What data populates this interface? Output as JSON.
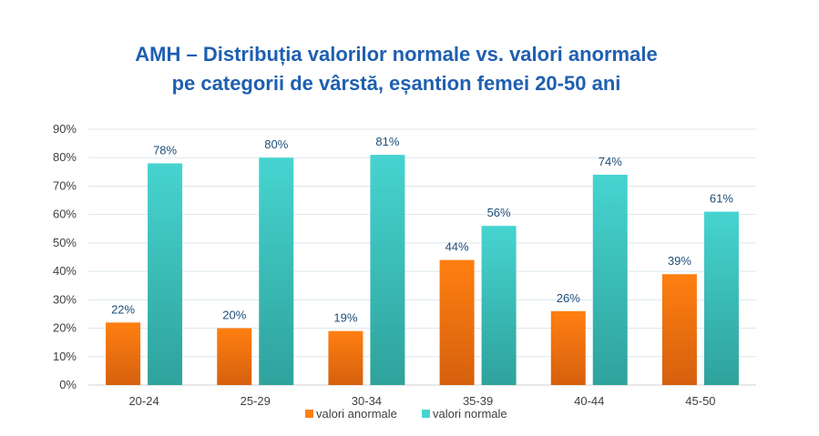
{
  "chart_data": {
    "type": "bar",
    "title_line1": "AMH – Distribuția valorilor normale vs. valori anormale",
    "title_line2": "pe categorii de vârstă, eșantion femei 20-50 ani",
    "categories": [
      "20-24",
      "25-29",
      "30-34",
      "35-39",
      "40-44",
      "45-50"
    ],
    "series": [
      {
        "name": "valori anormale",
        "values": [
          22,
          20,
          19,
          44,
          26,
          39
        ],
        "labels": [
          "22%",
          "20%",
          "19%",
          "44%",
          "26%",
          "39%"
        ],
        "color_top": "#ff7f10",
        "color_bottom": "#d6600e"
      },
      {
        "name": "valori normale",
        "values": [
          78,
          80,
          81,
          56,
          74,
          61
        ],
        "labels": [
          "78%",
          "80%",
          "81%",
          "56%",
          "74%",
          "61%"
        ],
        "color_top": "#46d4d0",
        "color_bottom": "#2fa29c"
      }
    ],
    "y_ticks": [
      "0%",
      "10%",
      "20%",
      "30%",
      "40%",
      "50%",
      "60%",
      "70%",
      "80%",
      "90%"
    ],
    "ylim": [
      0,
      90
    ],
    "grid": true,
    "legend_position": "bottom",
    "xlabel": "",
    "ylabel": ""
  }
}
